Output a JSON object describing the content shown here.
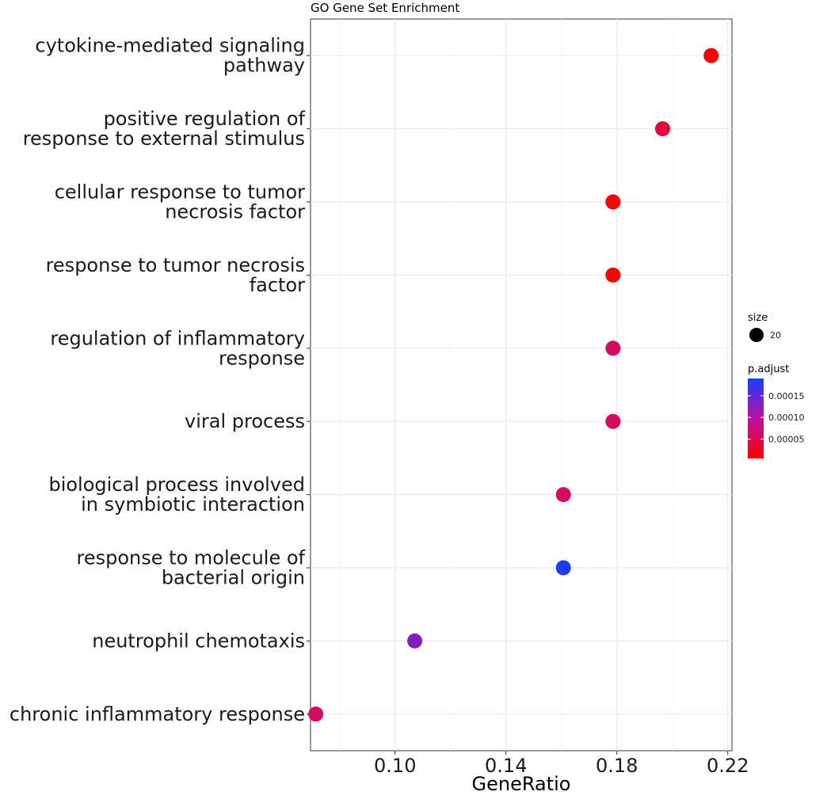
{
  "chart_data": {
    "type": "scatter",
    "title": "GO Gene Set Enrichment",
    "xlabel": "GeneRatio",
    "ylabel": "",
    "xlim": [
      0.0695,
      0.2215
    ],
    "x_ticks": [
      "0.10",
      "0.14",
      "0.18",
      "0.22"
    ],
    "x_tick_values": [
      0.1,
      0.14,
      0.18,
      0.22
    ],
    "grid": true,
    "categories": [
      {
        "label_lines": [
          "cytokine-mediated signaling",
          "pathway"
        ],
        "x": 0.214,
        "p_adjust": 5e-06,
        "size": 20
      },
      {
        "label_lines": [
          "positive regulation of",
          "response to external stimulus"
        ],
        "x": 0.1965,
        "p_adjust": 4e-05,
        "size": 20
      },
      {
        "label_lines": [
          "cellular response to tumor",
          "necrosis factor"
        ],
        "x": 0.1786,
        "p_adjust": 8e-06,
        "size": 20
      },
      {
        "label_lines": [
          "response to tumor necrosis",
          "factor"
        ],
        "x": 0.1786,
        "p_adjust": 5e-06,
        "size": 20
      },
      {
        "label_lines": [
          "regulation of inflammatory",
          "response"
        ],
        "x": 0.1786,
        "p_adjust": 6e-05,
        "size": 20
      },
      {
        "label_lines": [
          "viral process"
        ],
        "x": 0.1786,
        "p_adjust": 6e-05,
        "size": 20
      },
      {
        "label_lines": [
          "biological process involved",
          "in symbiotic interaction"
        ],
        "x": 0.1607,
        "p_adjust": 6e-05,
        "size": 20
      },
      {
        "label_lines": [
          "response to molecule of",
          "bacterial origin"
        ],
        "x": 0.1607,
        "p_adjust": 0.00019,
        "size": 20
      },
      {
        "label_lines": [
          "neutrophil chemotaxis"
        ],
        "x": 0.1071,
        "p_adjust": 0.00013,
        "size": 20
      },
      {
        "label_lines": [
          "chronic inflammatory response"
        ],
        "x": 0.0714,
        "p_adjust": 6e-05,
        "size": 20
      }
    ],
    "legend": {
      "placement": "right",
      "size_title": "size",
      "size_label": "20",
      "color_title": "p.adjust",
      "color_ticks": [
        "0.00015",
        "0.00010",
        "0.00005"
      ],
      "color_tick_values": [
        0.00015,
        0.0001,
        5e-05
      ],
      "color_range": [
        5e-06,
        0.00019
      ],
      "color_low": "#ff0000",
      "color_high": "#1a3cff"
    }
  }
}
